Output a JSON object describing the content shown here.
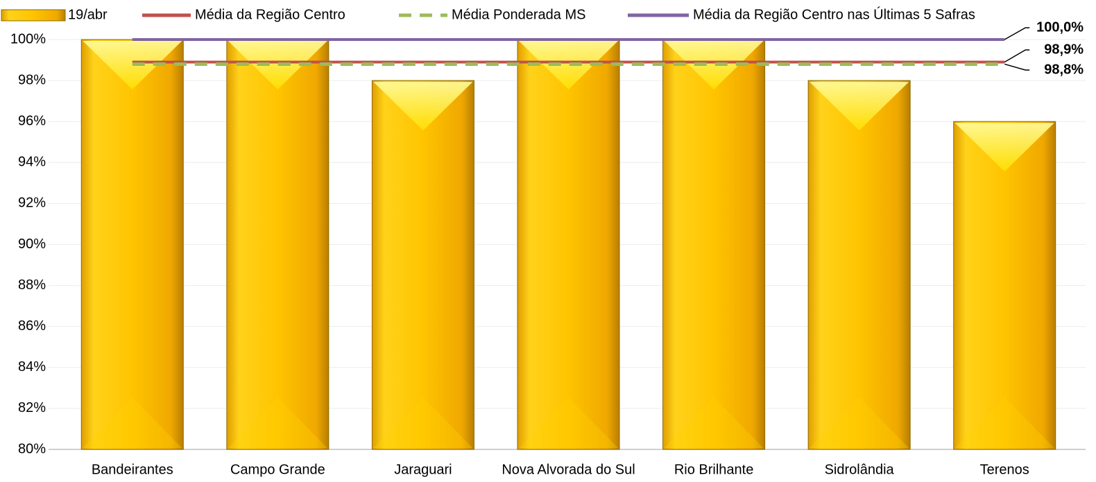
{
  "chart_data": {
    "type": "bar",
    "categories": [
      "Bandeirantes",
      "Campo Grande",
      "Jaraguari",
      "Nova Alvorada do Sul",
      "Rio Brilhante",
      "Sidrolândia",
      "Terenos"
    ],
    "series": [
      {
        "name": "19/abr",
        "type": "bar",
        "color": "#FFC000",
        "values": [
          100,
          100,
          98,
          100,
          100,
          98,
          96
        ]
      },
      {
        "name": "Média da Região Centro",
        "type": "line",
        "color": "#C0504D",
        "values": [
          98.9,
          98.9,
          98.9,
          98.9,
          98.9,
          98.9,
          98.9
        ],
        "value_labels": [
          null,
          null,
          null,
          null,
          null,
          null,
          "98,9%"
        ]
      },
      {
        "name": "Média Ponderada MS",
        "type": "line",
        "color": "#9BBB59",
        "dashed": true,
        "values": [
          98.8,
          98.8,
          98.8,
          98.8,
          98.8,
          98.8,
          98.8
        ],
        "value_labels": [
          null,
          null,
          null,
          null,
          null,
          null,
          "98,8%"
        ]
      },
      {
        "name": "Média da Região Centro nas Últimas 5 Safras",
        "type": "line",
        "color": "#8064A2",
        "values": [
          100,
          100,
          100,
          100,
          100,
          100,
          100
        ],
        "value_labels": [
          null,
          null,
          null,
          null,
          null,
          null,
          "100,0%"
        ]
      }
    ],
    "ylim": [
      80,
      100
    ],
    "yticks": [
      {
        "value": 80,
        "label": "80%"
      },
      {
        "value": 82,
        "label": "82%"
      },
      {
        "value": 84,
        "label": "84%"
      },
      {
        "value": 86,
        "label": "86%"
      },
      {
        "value": 88,
        "label": "88%"
      },
      {
        "value": 90,
        "label": "90%"
      },
      {
        "value": 92,
        "label": "92%"
      },
      {
        "value": 94,
        "label": "94%"
      },
      {
        "value": 96,
        "label": "96%"
      },
      {
        "value": 98,
        "label": "98%"
      },
      {
        "value": 100,
        "label": "100%"
      }
    ],
    "grid": true,
    "legend": "top"
  }
}
